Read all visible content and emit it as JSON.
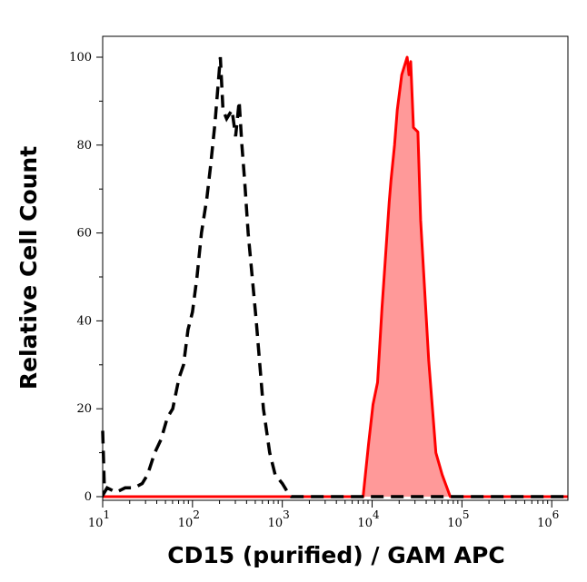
{
  "chart_data": {
    "type": "area",
    "title": "",
    "xlabel": "CD15 (purified) / GAM APC",
    "ylabel": "Relative Cell Count",
    "x_scale": "log",
    "xlim_log10": [
      1.0,
      6.18
    ],
    "ylim": [
      0,
      104.8
    ],
    "x_tick_labels": [
      {
        "base": "10",
        "exp": "1",
        "value": 10
      },
      {
        "base": "10",
        "exp": "2",
        "value": 100
      },
      {
        "base": "10",
        "exp": "3",
        "value": 1000
      },
      {
        "base": "10",
        "exp": "4",
        "value": 10000
      },
      {
        "base": "10",
        "exp": "5",
        "value": 100000
      },
      {
        "base": "10",
        "exp": "6",
        "value": 1000000
      }
    ],
    "y_ticks": [
      0,
      20,
      40,
      60,
      80,
      100
    ],
    "grid": false,
    "series": [
      {
        "style": "dashed line, no fill",
        "color": "#000000",
        "x_log10": [
          1.0,
          1.02,
          1.05,
          1.15,
          1.25,
          1.35,
          1.44,
          1.5,
          1.58,
          1.65,
          1.72,
          1.78,
          1.85,
          1.9,
          1.95,
          2.0,
          2.05,
          2.1,
          2.16,
          2.2,
          2.25,
          2.31,
          2.34,
          2.38,
          2.44,
          2.48,
          2.52,
          2.55,
          2.58,
          2.62,
          2.71,
          2.79,
          2.86,
          2.92,
          3.0,
          3.06,
          3.1,
          6.18
        ],
        "y": [
          15,
          1,
          2,
          1,
          2,
          2,
          3,
          5,
          10,
          13,
          18,
          20,
          27,
          30,
          38,
          42,
          50,
          60,
          68,
          75,
          85,
          100,
          88,
          86,
          88,
          82,
          90,
          80,
          72,
          60,
          40,
          20,
          10,
          5,
          3,
          1,
          0,
          0
        ]
      },
      {
        "style": "solid line with fill",
        "color": "#ff0000",
        "fill": "#ff9999",
        "x_log10": [
          1.0,
          3.88,
          3.9,
          3.96,
          4.01,
          4.06,
          4.11,
          4.14,
          4.19,
          4.21,
          4.25,
          4.28,
          4.33,
          4.36,
          4.39,
          4.41,
          4.43,
          4.46,
          4.51,
          4.54,
          4.63,
          4.71,
          4.78,
          4.87,
          4.9,
          6.18
        ],
        "y": [
          0,
          0,
          0,
          12,
          21,
          26,
          43,
          52,
          67,
          72,
          80,
          88,
          96,
          98,
          100,
          96,
          99,
          84,
          83,
          63,
          31,
          10,
          5,
          0,
          0,
          0
        ]
      }
    ]
  }
}
